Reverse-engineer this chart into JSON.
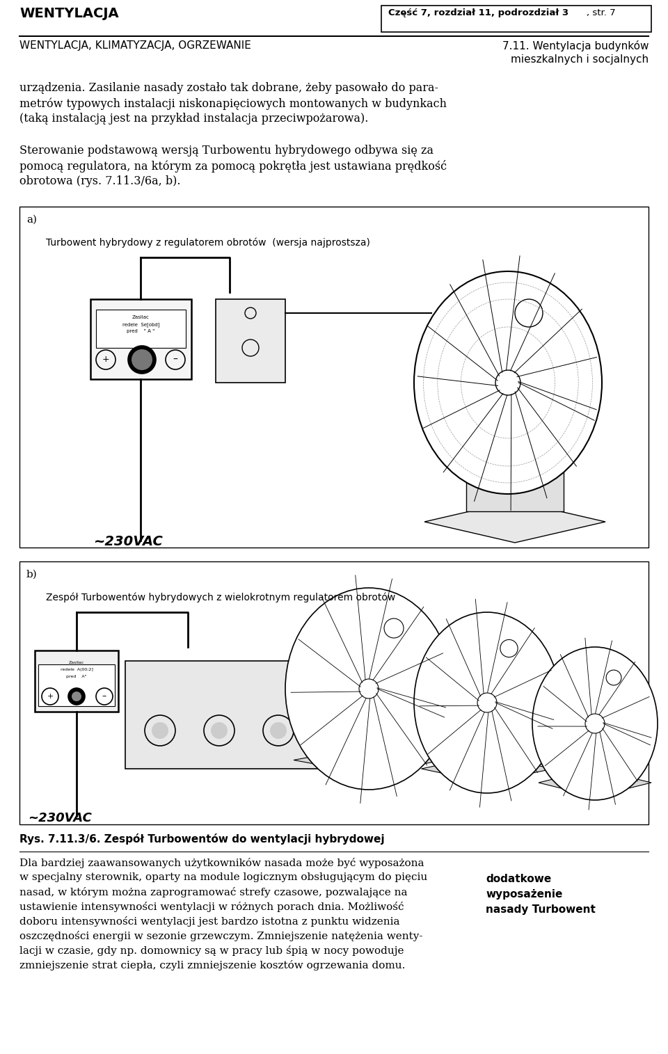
{
  "page_width": 9.6,
  "page_height": 15.15,
  "dpi": 100,
  "bg_color": "#ffffff",
  "header_left": "WENTYLACJA",
  "header_box_bold": "Część 7, rozdział 11, podrozdział 3",
  "header_box_normal": ", str. 7",
  "subheader_left": "WENTYLACJA, KLIMATYZACJA, OGRZEWANIE",
  "subheader_right1": "7.11. Wentylacja budynków",
  "subheader_right2": "mieszkalnych i socjalnych",
  "para1_lines": [
    "urządzenia. Zasilanie nasady zostało tak dobrane, żeby pasowało do para-",
    "metrów typowych instalacji niskonapięciowych montowanych w budynkach",
    "(taką instalacją jest na przykład instalacja przeciwpożarowa)."
  ],
  "para2_lines": [
    "Sterowanie podstawową wersją Turbowentu hybrydowego odbywa się za",
    "pomocą regulatora, na którym za pomocą pokrętła jest ustawiana prędkość",
    "obrotowa (rys. 7.11.3/6a, b)."
  ],
  "diag_a_label": "a)",
  "diag_a_caption": "Turbowent hybrydowy z regulatorem obrotów  (wersja najprostsza)",
  "diag_b_label": "b)",
  "diag_b_caption": "Zespół Turbowentów hybrydowych z wielokrotnym regulatorem obrotów",
  "voltage": "~230VAC",
  "fig_caption": "Rys. 7.11.3/6. Zespół Turbowentów do wentylacji hybrydowej",
  "bottom_col1": [
    "Dla bardziej zaawansowanych użytkowników nasada może być wyposażona",
    "w specjalny sterownik, oparty na module logicznym obsługującym do pięciu",
    "nasad, w którym można zaprogramować strefy czasowe, pozwalające na",
    "ustawienie intensywności wentylacji w różnych porach dnia. Możliwość",
    "doboru intensywności wentylacji jest bardzo istotna z punktu widzenia",
    "oszczędności energii w sezonie grzewczym. Zmniejszenie natężenia wenty-",
    "lacji w czasie, gdy np. domownicy są w pracy lub śpią w nocy powoduje",
    "zmniejszenie strat ciepła, czyli zmniejszenie kosztów ogrzewania domu."
  ],
  "bottom_col2": [
    "dodatkowe",
    "wyposażenie",
    "nasady Turbowent"
  ]
}
